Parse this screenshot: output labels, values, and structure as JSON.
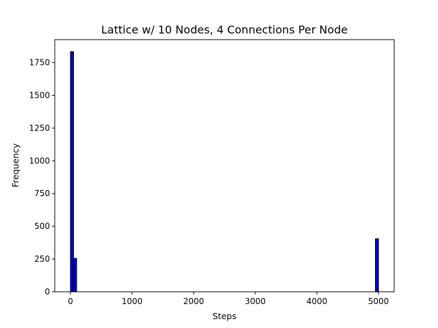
{
  "chart_data": {
    "type": "bar",
    "title": "Lattice w/ 10 Nodes, 4 Connections Per Node",
    "xlabel": "Steps",
    "ylabel": "Frequency",
    "xlim": [
      -255,
      5255
    ],
    "ylim": [
      0,
      1925
    ],
    "xticks": [
      0,
      1000,
      2000,
      3000,
      4000,
      5000
    ],
    "yticks": [
      0,
      250,
      500,
      750,
      1000,
      1250,
      1500,
      1750
    ],
    "bin_width": 50,
    "bars": [
      {
        "x_start": 0,
        "x_end": 50,
        "value": 1833
      },
      {
        "x_start": 50,
        "x_end": 100,
        "value": 255
      },
      {
        "x_start": 4950,
        "x_end": 5000,
        "value": 405
      }
    ],
    "bar_color": "#0000cc",
    "edge_color": "#000000",
    "grid": false,
    "legend": "none"
  }
}
